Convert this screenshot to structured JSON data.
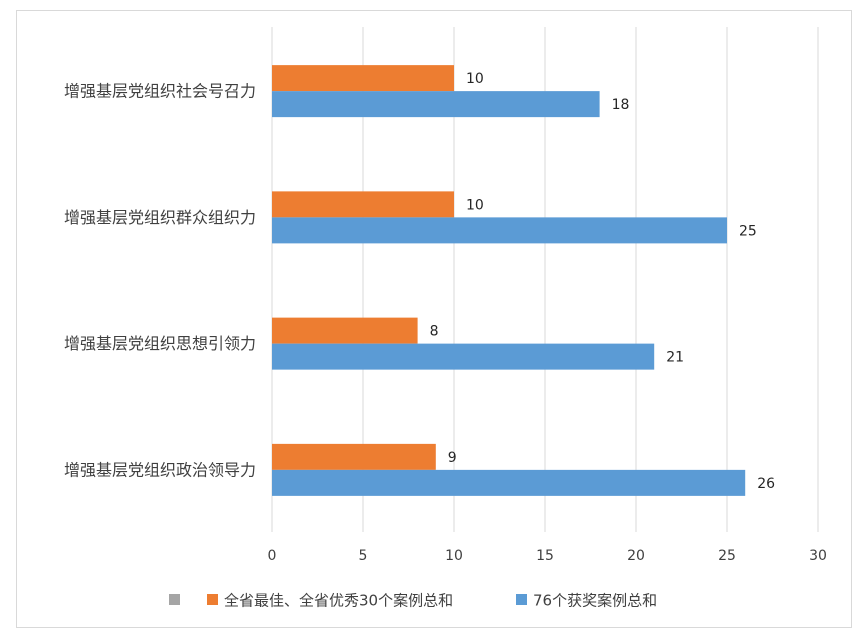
{
  "chart_data": {
    "type": "bar",
    "orientation": "horizontal",
    "categories": [
      "增强基层党组织社会号召力",
      "增强基层党组织群众组织力",
      "增强基层党组织思想引领力",
      "增强基层党组织政治领导力"
    ],
    "series": [
      {
        "name": "全省最佳、全省优秀30个案例总和",
        "color": "#ed7d31",
        "values": [
          10,
          10,
          8,
          9
        ]
      },
      {
        "name": "76个获奖案例总和",
        "color": "#5b9bd5",
        "values": [
          18,
          25,
          21,
          26
        ]
      }
    ],
    "xlim": [
      0,
      30
    ],
    "xticks": [
      0,
      5,
      10,
      15,
      20,
      25,
      30
    ],
    "grid": "vertical",
    "legend_position": "bottom",
    "legend_extra_marker_color": "#a5a5a5",
    "gridline_color": "#d9d9d9"
  }
}
